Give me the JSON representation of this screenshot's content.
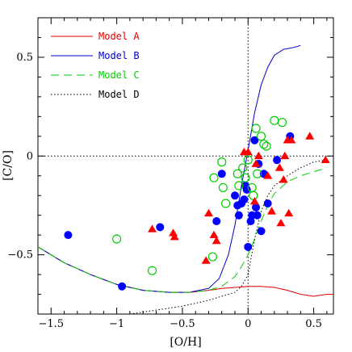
{
  "chart_data": {
    "type": "scatter",
    "xlabel": "[O/H]",
    "ylabel": "[C/O]",
    "xlim": [
      -1.6,
      0.65
    ],
    "ylim": [
      -0.8,
      0.7
    ],
    "x_ticks": [
      -1.5,
      -1,
      -0.5,
      0,
      0.5
    ],
    "x_tick_labels": [
      "−1.5",
      "−1",
      "−0.5",
      "0",
      "0.5"
    ],
    "y_ticks": [
      -0.5,
      0,
      0.5
    ],
    "y_tick_labels": [
      "−0.5",
      "0",
      "0.5"
    ],
    "grid": false,
    "legend_position": "top-left",
    "reference_lines": [
      {
        "orientation": "horizontal",
        "value": 0,
        "style": "dotted"
      },
      {
        "orientation": "vertical",
        "value": 0,
        "style": "dotted"
      }
    ],
    "models": [
      {
        "name": "Model A",
        "color": "#e00000",
        "dash": "solid",
        "x": [
          -1.6,
          -1.4,
          -1.2,
          -1.0,
          -0.8,
          -0.6,
          -0.45,
          -0.3,
          -0.2,
          -0.1,
          0.0,
          0.1,
          0.2,
          0.3,
          0.4,
          0.5,
          0.6,
          0.65
        ],
        "y": [
          -0.46,
          -0.54,
          -0.6,
          -0.65,
          -0.68,
          -0.69,
          -0.69,
          -0.68,
          -0.67,
          -0.665,
          -0.66,
          -0.66,
          -0.665,
          -0.68,
          -0.7,
          -0.71,
          -0.7,
          -0.7
        ]
      },
      {
        "name": "Model B",
        "color": "#0000cc",
        "dash": "solid",
        "x": [
          -1.6,
          -1.4,
          -1.2,
          -1.0,
          -0.8,
          -0.6,
          -0.45,
          -0.3,
          -0.22,
          -0.15,
          -0.1,
          -0.05,
          0.0,
          0.05,
          0.1,
          0.15,
          0.2,
          0.27,
          0.35,
          0.4
        ],
        "y": [
          -0.46,
          -0.54,
          -0.6,
          -0.65,
          -0.68,
          -0.69,
          -0.69,
          -0.67,
          -0.62,
          -0.5,
          -0.35,
          -0.15,
          0.03,
          0.22,
          0.36,
          0.45,
          0.51,
          0.54,
          0.55,
          0.56
        ]
      },
      {
        "name": "Model C",
        "color": "#00cc00",
        "dash": "dashed",
        "x": [
          -1.6,
          -1.4,
          -1.2,
          -1.0,
          -0.8,
          -0.6,
          -0.45,
          -0.3,
          -0.2,
          -0.1,
          -0.05,
          0.0,
          0.05,
          0.1,
          0.15,
          0.2,
          0.3,
          0.4,
          0.5,
          0.6
        ],
        "y": [
          -0.46,
          -0.54,
          -0.6,
          -0.65,
          -0.68,
          -0.69,
          -0.69,
          -0.68,
          -0.66,
          -0.61,
          -0.56,
          -0.5,
          -0.42,
          -0.33,
          -0.25,
          -0.19,
          -0.13,
          -0.1,
          -0.08,
          -0.06
        ]
      },
      {
        "name": "Model D",
        "color": "#000000",
        "dash": "dotted",
        "x": [
          -0.9,
          -0.7,
          -0.5,
          -0.3,
          -0.2,
          -0.1,
          -0.05,
          0.0,
          0.05,
          0.1,
          0.15,
          0.2,
          0.3,
          0.4,
          0.5,
          0.6
        ],
        "y": [
          -0.8,
          -0.78,
          -0.76,
          -0.73,
          -0.71,
          -0.69,
          -0.66,
          -0.6,
          -0.42,
          -0.28,
          -0.2,
          -0.15,
          -0.1,
          -0.06,
          -0.03,
          -0.02
        ]
      }
    ],
    "observations": [
      {
        "marker": "filled-circle",
        "color": "#0000ff",
        "points": [
          [
            -1.37,
            -0.4
          ],
          [
            -0.96,
            -0.66
          ],
          [
            -0.67,
            -0.36
          ],
          [
            -0.24,
            -0.33
          ],
          [
            -0.2,
            -0.09
          ],
          [
            -0.1,
            -0.2
          ],
          [
            -0.08,
            -0.25
          ],
          [
            -0.07,
            -0.3
          ],
          [
            -0.05,
            -0.24
          ],
          [
            -0.03,
            -0.22
          ],
          [
            -0.02,
            -0.15
          ],
          [
            -0.01,
            -0.17
          ],
          [
            0.0,
            -0.46
          ],
          [
            0.02,
            -0.33
          ],
          [
            0.03,
            -0.3
          ],
          [
            0.05,
            0.08
          ],
          [
            0.06,
            -0.26
          ],
          [
            0.07,
            -0.3
          ],
          [
            0.08,
            -0.04
          ],
          [
            0.1,
            -0.38
          ],
          [
            0.12,
            -0.09
          ],
          [
            0.15,
            -0.24
          ],
          [
            0.22,
            -0.02
          ],
          [
            0.32,
            0.1
          ]
        ]
      },
      {
        "marker": "open-circle",
        "color": "#00cc00",
        "points": [
          [
            -1.0,
            -0.42
          ],
          [
            -0.73,
            -0.58
          ],
          [
            -0.27,
            -0.51
          ],
          [
            -0.26,
            -0.11
          ],
          [
            -0.2,
            -0.03
          ],
          [
            -0.19,
            -0.16
          ],
          [
            -0.17,
            -0.24
          ],
          [
            -0.08,
            -0.09
          ],
          [
            -0.07,
            -0.15
          ],
          [
            -0.04,
            -0.06
          ],
          [
            -0.02,
            -0.11
          ],
          [
            0.0,
            -0.02
          ],
          [
            0.03,
            -0.16
          ],
          [
            0.04,
            -0.2
          ],
          [
            0.06,
            0.14
          ],
          [
            0.07,
            -0.09
          ],
          [
            0.1,
            0.1
          ],
          [
            0.12,
            0.06
          ],
          [
            0.14,
            0.05
          ],
          [
            0.2,
            0.18
          ],
          [
            0.26,
            0.17
          ]
        ]
      },
      {
        "marker": "filled-triangle",
        "color": "#ff0000",
        "points": [
          [
            -0.73,
            -0.37
          ],
          [
            -0.57,
            -0.39
          ],
          [
            -0.56,
            -0.41
          ],
          [
            -0.32,
            -0.53
          ],
          [
            -0.3,
            -0.29
          ],
          [
            -0.26,
            -0.4
          ],
          [
            -0.24,
            -0.43
          ],
          [
            -0.03,
            0.02
          ],
          [
            0.0,
            0.02
          ],
          [
            0.05,
            -0.23
          ],
          [
            0.06,
            -0.04
          ],
          [
            0.08,
            0.0
          ],
          [
            0.15,
            -0.1
          ],
          [
            0.18,
            -0.28
          ],
          [
            0.24,
            -0.06
          ],
          [
            0.25,
            -0.34
          ],
          [
            0.27,
            -0.12
          ],
          [
            0.28,
            0.0
          ],
          [
            0.3,
            0.08
          ],
          [
            0.31,
            -0.29
          ],
          [
            0.33,
            0.08
          ],
          [
            0.47,
            0.1
          ],
          [
            0.59,
            -0.02
          ]
        ]
      }
    ]
  }
}
